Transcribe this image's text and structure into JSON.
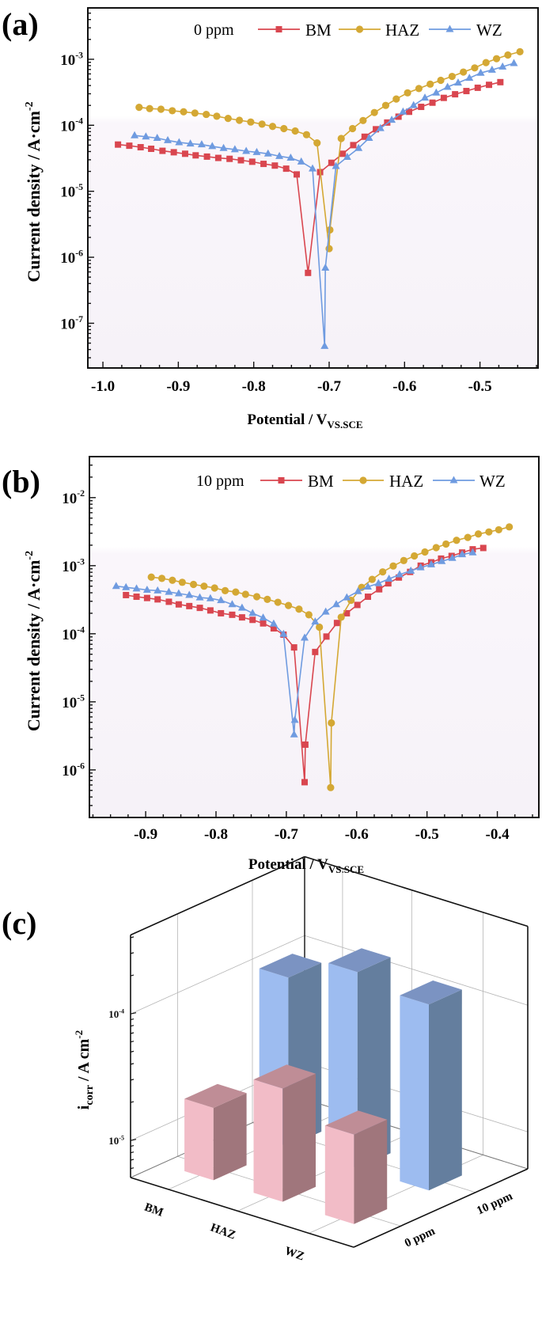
{
  "colors": {
    "BM": "#d9464f",
    "HAZ": "#d4a834",
    "WZ": "#6f9be0",
    "pink_front": "#f2bcc7",
    "pink_side": "#a0767c",
    "pink_top": "#bf8d96",
    "blue_front": "#9dbcf0",
    "blue_side": "#647e9e",
    "blue_top": "#7b93c2"
  },
  "chart_data": [
    {
      "panel_label": "(a)",
      "type": "line",
      "legend_title": "0 ppm",
      "legend_placement": "top",
      "xlabel": "Potential / V",
      "xlabel_sub": "VS.SCE",
      "ylabel": "Current density / A·cm",
      "ylabel_sup": "-2",
      "yscale": "log",
      "xlim": [
        -1.02,
        -0.423
      ],
      "ylim": [
        2.1e-08,
        0.006
      ],
      "xticks": [
        -1.0,
        -0.9,
        -0.8,
        -0.7,
        -0.6,
        -0.5
      ],
      "xtick_labels": [
        "-1.0",
        "-0.9",
        "-0.8",
        "-0.7",
        "-0.6",
        "-0.5"
      ],
      "ytick_exponents": [
        -7,
        -6,
        -5,
        -4,
        -3
      ],
      "ytick_base": "10",
      "ytick_labels": [
        "-7",
        "-6",
        "-5",
        "-4",
        "-3"
      ],
      "series": [
        {
          "name": "BM",
          "marker": "square",
          "x": [
            -0.98,
            -0.965,
            -0.95,
            -0.936,
            -0.921,
            -0.906,
            -0.891,
            -0.877,
            -0.862,
            -0.847,
            -0.832,
            -0.817,
            -0.802,
            -0.787,
            -0.772,
            -0.757,
            -0.743,
            -0.728,
            -0.712,
            -0.697,
            -0.682,
            -0.668,
            -0.653,
            -0.638,
            -0.623,
            -0.608,
            -0.594,
            -0.578,
            -0.563,
            -0.548,
            -0.533,
            -0.518,
            -0.503,
            -0.488,
            -0.473
          ],
          "y": [
            5.1e-05,
            4.9e-05,
            4.65e-05,
            4.4e-05,
            4.1e-05,
            3.9e-05,
            3.7e-05,
            3.5e-05,
            3.35e-05,
            3.2e-05,
            3.1e-05,
            2.95e-05,
            2.8e-05,
            2.6e-05,
            2.45e-05,
            2.2e-05,
            1.8e-05,
            5.8e-07,
            1.95e-05,
            2.7e-05,
            3.7e-05,
            5e-05,
            6.7e-05,
            8.7e-05,
            0.00011,
            0.000135,
            0.00016,
            0.00019,
            0.00022,
            0.00026,
            0.000295,
            0.00033,
            0.00037,
            0.00041,
            0.00045
          ]
        },
        {
          "name": "HAZ",
          "marker": "circle",
          "x": [
            -0.952,
            -0.938,
            -0.923,
            -0.908,
            -0.893,
            -0.878,
            -0.863,
            -0.849,
            -0.834,
            -0.819,
            -0.804,
            -0.789,
            -0.775,
            -0.76,
            -0.745,
            -0.73,
            -0.716,
            -0.7,
            -0.699,
            -0.684,
            -0.669,
            -0.655,
            -0.64,
            -0.625,
            -0.611,
            -0.596,
            -0.581,
            -0.566,
            -0.552,
            -0.537,
            -0.522,
            -0.507,
            -0.492,
            -0.478,
            -0.463,
            -0.447
          ],
          "y": [
            0.000187,
            0.000179,
            0.000175,
            0.000166,
            0.00016,
            0.000153,
            0.000146,
            0.000137,
            0.000127,
            0.000119,
            0.000112,
            0.000104,
            9.6e-05,
            8.9e-05,
            8.2e-05,
            7.2e-05,
            5.4e-05,
            1.35e-06,
            2.6e-06,
            6.3e-05,
            8.9e-05,
            0.000118,
            0.000156,
            0.0002,
            0.00025,
            0.00031,
            0.00036,
            0.00042,
            0.00048,
            0.00055,
            0.00064,
            0.00074,
            0.00089,
            0.00102,
            0.00116,
            0.0013
          ]
        },
        {
          "name": "WZ",
          "marker": "triangle",
          "x": [
            -0.958,
            -0.943,
            -0.928,
            -0.914,
            -0.899,
            -0.884,
            -0.869,
            -0.855,
            -0.84,
            -0.825,
            -0.81,
            -0.796,
            -0.781,
            -0.766,
            -0.751,
            -0.737,
            -0.722,
            -0.706,
            -0.705,
            -0.691,
            -0.676,
            -0.661,
            -0.647,
            -0.632,
            -0.617,
            -0.602,
            -0.588,
            -0.573,
            -0.558,
            -0.543,
            -0.529,
            -0.514,
            -0.499,
            -0.484,
            -0.47,
            -0.455
          ],
          "y": [
            7e-05,
            6.7e-05,
            6.4e-05,
            5.9e-05,
            5.5e-05,
            5.25e-05,
            5.1e-05,
            4.8e-05,
            4.5e-05,
            4.3e-05,
            4.05e-05,
            3.9e-05,
            3.7e-05,
            3.4e-05,
            3.2e-05,
            2.8e-05,
            2.2e-05,
            4.5e-08,
            6.9e-07,
            2.4e-05,
            3.3e-05,
            4.5e-05,
            6.4e-05,
            9e-05,
            0.00012,
            0.00016,
            0.0002,
            0.00026,
            0.00031,
            0.00038,
            0.00044,
            0.00052,
            0.00062,
            0.00069,
            0.00077,
            0.00087
          ]
        }
      ]
    },
    {
      "panel_label": "(b)",
      "type": "line",
      "legend_title": "10 ppm",
      "legend_placement": "top",
      "xlabel": "Potential / V",
      "xlabel_sub": "VS.SCE",
      "ylabel": "Current density / A·cm",
      "ylabel_sup": "-2",
      "yscale": "log",
      "xlim": [
        -0.98,
        -0.341
      ],
      "ylim": [
        2e-07,
        0.04
      ],
      "xticks": [
        -0.9,
        -0.8,
        -0.7,
        -0.6,
        -0.5,
        -0.4
      ],
      "xtick_labels": [
        "-0.9",
        "-0.8",
        "-0.7",
        "-0.6",
        "-0.5",
        "-0.4"
      ],
      "ytick_exponents": [
        -6,
        -5,
        -4,
        -3,
        -2
      ],
      "ytick_base": "10",
      "ytick_labels": [
        "-6",
        "-5",
        "-4",
        "-3",
        "-2"
      ],
      "series": [
        {
          "name": "BM",
          "marker": "square",
          "x": [
            -0.928,
            -0.913,
            -0.898,
            -0.883,
            -0.867,
            -0.853,
            -0.838,
            -0.823,
            -0.808,
            -0.793,
            -0.777,
            -0.763,
            -0.748,
            -0.733,
            -0.718,
            -0.704,
            -0.689,
            -0.674,
            -0.673,
            -0.659,
            -0.643,
            -0.628,
            -0.614,
            -0.599,
            -0.584,
            -0.568,
            -0.555,
            -0.54,
            -0.524,
            -0.509,
            -0.494,
            -0.48,
            -0.465,
            -0.45,
            -0.435,
            -0.42
          ],
          "y": [
            0.00037,
            0.00035,
            0.000335,
            0.00032,
            0.000295,
            0.00027,
            0.000255,
            0.00024,
            0.00022,
            0.0002,
            0.00019,
            0.000174,
            0.00016,
            0.000142,
            0.00012,
            9.7e-05,
            6.3e-05,
            6.6e-07,
            2.35e-06,
            5.4e-05,
            9.1e-05,
            0.000144,
            0.0002,
            0.000265,
            0.00035,
            0.00045,
            0.00055,
            0.00067,
            0.00081,
            0.001,
            0.00112,
            0.00127,
            0.00139,
            0.00156,
            0.00174,
            0.00182
          ]
        },
        {
          "name": "HAZ",
          "marker": "circle",
          "x": [
            -0.892,
            -0.877,
            -0.862,
            -0.848,
            -0.832,
            -0.817,
            -0.802,
            -0.787,
            -0.772,
            -0.758,
            -0.742,
            -0.727,
            -0.712,
            -0.697,
            -0.682,
            -0.668,
            -0.653,
            -0.637,
            -0.636,
            -0.622,
            -0.608,
            -0.593,
            -0.578,
            -0.563,
            -0.548,
            -0.533,
            -0.518,
            -0.503,
            -0.487,
            -0.473,
            -0.458,
            -0.442,
            -0.427,
            -0.412,
            -0.398,
            -0.383
          ],
          "y": [
            0.00068,
            0.00065,
            0.00061,
            0.00057,
            0.00053,
            0.0005,
            0.00047,
            0.00043,
            0.00041,
            0.00038,
            0.00035,
            0.00032,
            0.00029,
            0.00026,
            0.00023,
            0.00019,
            0.000125,
            5.5e-07,
            4.9e-06,
            0.000175,
            0.00031,
            0.00048,
            0.00063,
            0.00081,
            0.00099,
            0.00119,
            0.00139,
            0.00159,
            0.00184,
            0.00208,
            0.00236,
            0.0026,
            0.00292,
            0.00313,
            0.00337,
            0.00371
          ]
        },
        {
          "name": "WZ",
          "marker": "triangle",
          "x": [
            -0.942,
            -0.928,
            -0.913,
            -0.898,
            -0.883,
            -0.867,
            -0.853,
            -0.838,
            -0.823,
            -0.808,
            -0.793,
            -0.777,
            -0.763,
            -0.748,
            -0.733,
            -0.718,
            -0.704,
            -0.689,
            -0.688,
            -0.674,
            -0.659,
            -0.644,
            -0.629,
            -0.614,
            -0.598,
            -0.584,
            -0.569,
            -0.554,
            -0.539,
            -0.523,
            -0.509,
            -0.494,
            -0.479,
            -0.464,
            -0.45,
            -0.435
          ],
          "y": [
            0.0005,
            0.00048,
            0.00046,
            0.00044,
            0.00043,
            0.00041,
            0.00039,
            0.00037,
            0.00034,
            0.00033,
            0.00031,
            0.00027,
            0.00024,
            0.0002,
            0.000172,
            0.00014,
            9.9e-05,
            3.3e-06,
            5.4e-06,
            8.7e-05,
            0.00015,
            0.00021,
            0.00027,
            0.00034,
            0.00042,
            0.00049,
            0.00055,
            0.00064,
            0.00074,
            0.00084,
            0.00094,
            0.00104,
            0.00116,
            0.00129,
            0.00146,
            0.00156
          ]
        }
      ]
    },
    {
      "panel_label": "(c)",
      "type": "bar3d",
      "yscale": "log",
      "ylabel": "i",
      "ylabel_sub": "corr",
      "ylabel_unit": " /  A cm",
      "ylabel_sup": "-2",
      "ylim": [
        5.1e-06,
        0.00042
      ],
      "ytick_exponents": [
        -5,
        -4
      ],
      "ytick_base": "10",
      "ytick_labels": [
        "-5",
        "-4"
      ],
      "categories": [
        "BM",
        "HAZ",
        "WZ"
      ],
      "series": [
        {
          "name": "0 ppm",
          "values": [
            1.9e-05,
            4e-05,
            2.6e-05
          ]
        },
        {
          "name": "10 ppm",
          "values": [
            0.00011,
            0.00018,
            0.00015
          ]
        }
      ]
    }
  ]
}
